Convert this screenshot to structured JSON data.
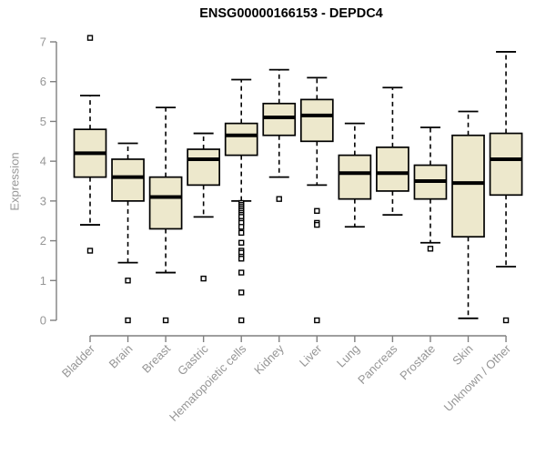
{
  "chart_data": {
    "type": "box",
    "title": "ENSG00000166153 - DEPDC4",
    "ylabel": "Expression",
    "xlabel": "",
    "ylim": [
      0,
      7
    ],
    "yticks": [
      0,
      1,
      2,
      3,
      4,
      5,
      6,
      7
    ],
    "grid": false,
    "legend": null,
    "colors": {
      "box_fill": "#EDE8CC",
      "box_stroke": "#000000",
      "median": "#000000",
      "whisker": "#000000",
      "outlier_stroke": "#000000",
      "outlier_fill": "#ffffff",
      "axis": "#7f7f7f",
      "tick_label": "#969696",
      "title": "#000000",
      "background": "#ffffff"
    },
    "categories": [
      "Bladder",
      "Brain",
      "Breast",
      "Gastric",
      "Hematopoietic cells",
      "Kidney",
      "Liver",
      "Lung",
      "Pancreas",
      "Prostate",
      "Skin",
      "Unknown / Other"
    ],
    "boxes": [
      {
        "category": "Bladder",
        "whisker_low": 2.4,
        "q1": 3.6,
        "median": 4.2,
        "q3": 4.8,
        "whisker_high": 5.65,
        "outliers": [
          7.1,
          1.75
        ]
      },
      {
        "category": "Brain",
        "whisker_low": 1.45,
        "q1": 3.0,
        "median": 3.6,
        "q3": 4.05,
        "whisker_high": 4.45,
        "outliers": [
          1.0,
          0
        ]
      },
      {
        "category": "Breast",
        "whisker_low": 1.2,
        "q1": 2.3,
        "median": 3.1,
        "q3": 3.6,
        "whisker_high": 5.35,
        "outliers": [
          0
        ]
      },
      {
        "category": "Gastric",
        "whisker_low": 2.6,
        "q1": 3.4,
        "median": 4.05,
        "q3": 4.3,
        "whisker_high": 4.7,
        "outliers": [
          1.05
        ]
      },
      {
        "category": "Hematopoietic cells",
        "whisker_low": 3.0,
        "q1": 4.15,
        "median": 4.65,
        "q3": 4.95,
        "whisker_high": 6.05,
        "outliers": [
          2.95,
          2.9,
          2.85,
          2.8,
          2.75,
          2.7,
          2.65,
          2.6,
          2.5,
          2.45,
          2.35,
          2.2,
          1.95,
          1.75,
          1.7,
          1.6,
          1.55,
          1.2,
          0.7,
          0
        ]
      },
      {
        "category": "Kidney",
        "whisker_low": 3.6,
        "q1": 4.65,
        "median": 5.1,
        "q3": 5.45,
        "whisker_high": 6.3,
        "outliers": [
          3.05
        ]
      },
      {
        "category": "Liver",
        "whisker_low": 3.4,
        "q1": 4.5,
        "median": 5.15,
        "q3": 5.55,
        "whisker_high": 6.1,
        "outliers": [
          2.75,
          2.45,
          2.4,
          0
        ]
      },
      {
        "category": "Lung",
        "whisker_low": 2.35,
        "q1": 3.05,
        "median": 3.7,
        "q3": 4.15,
        "whisker_high": 4.95,
        "outliers": []
      },
      {
        "category": "Pancreas",
        "whisker_low": 2.65,
        "q1": 3.25,
        "median": 3.7,
        "q3": 4.35,
        "whisker_high": 5.85,
        "outliers": []
      },
      {
        "category": "Prostate",
        "whisker_low": 1.95,
        "q1": 3.05,
        "median": 3.5,
        "q3": 3.9,
        "whisker_high": 4.85,
        "outliers": [
          1.8
        ]
      },
      {
        "category": "Skin",
        "whisker_low": 0.05,
        "q1": 2.1,
        "median": 3.45,
        "q3": 4.65,
        "whisker_high": 5.25,
        "outliers": []
      },
      {
        "category": "Unknown / Other",
        "whisker_low": 1.35,
        "q1": 3.15,
        "median": 4.05,
        "q3": 4.7,
        "whisker_high": 6.75,
        "outliers": [
          0
        ]
      }
    ]
  }
}
